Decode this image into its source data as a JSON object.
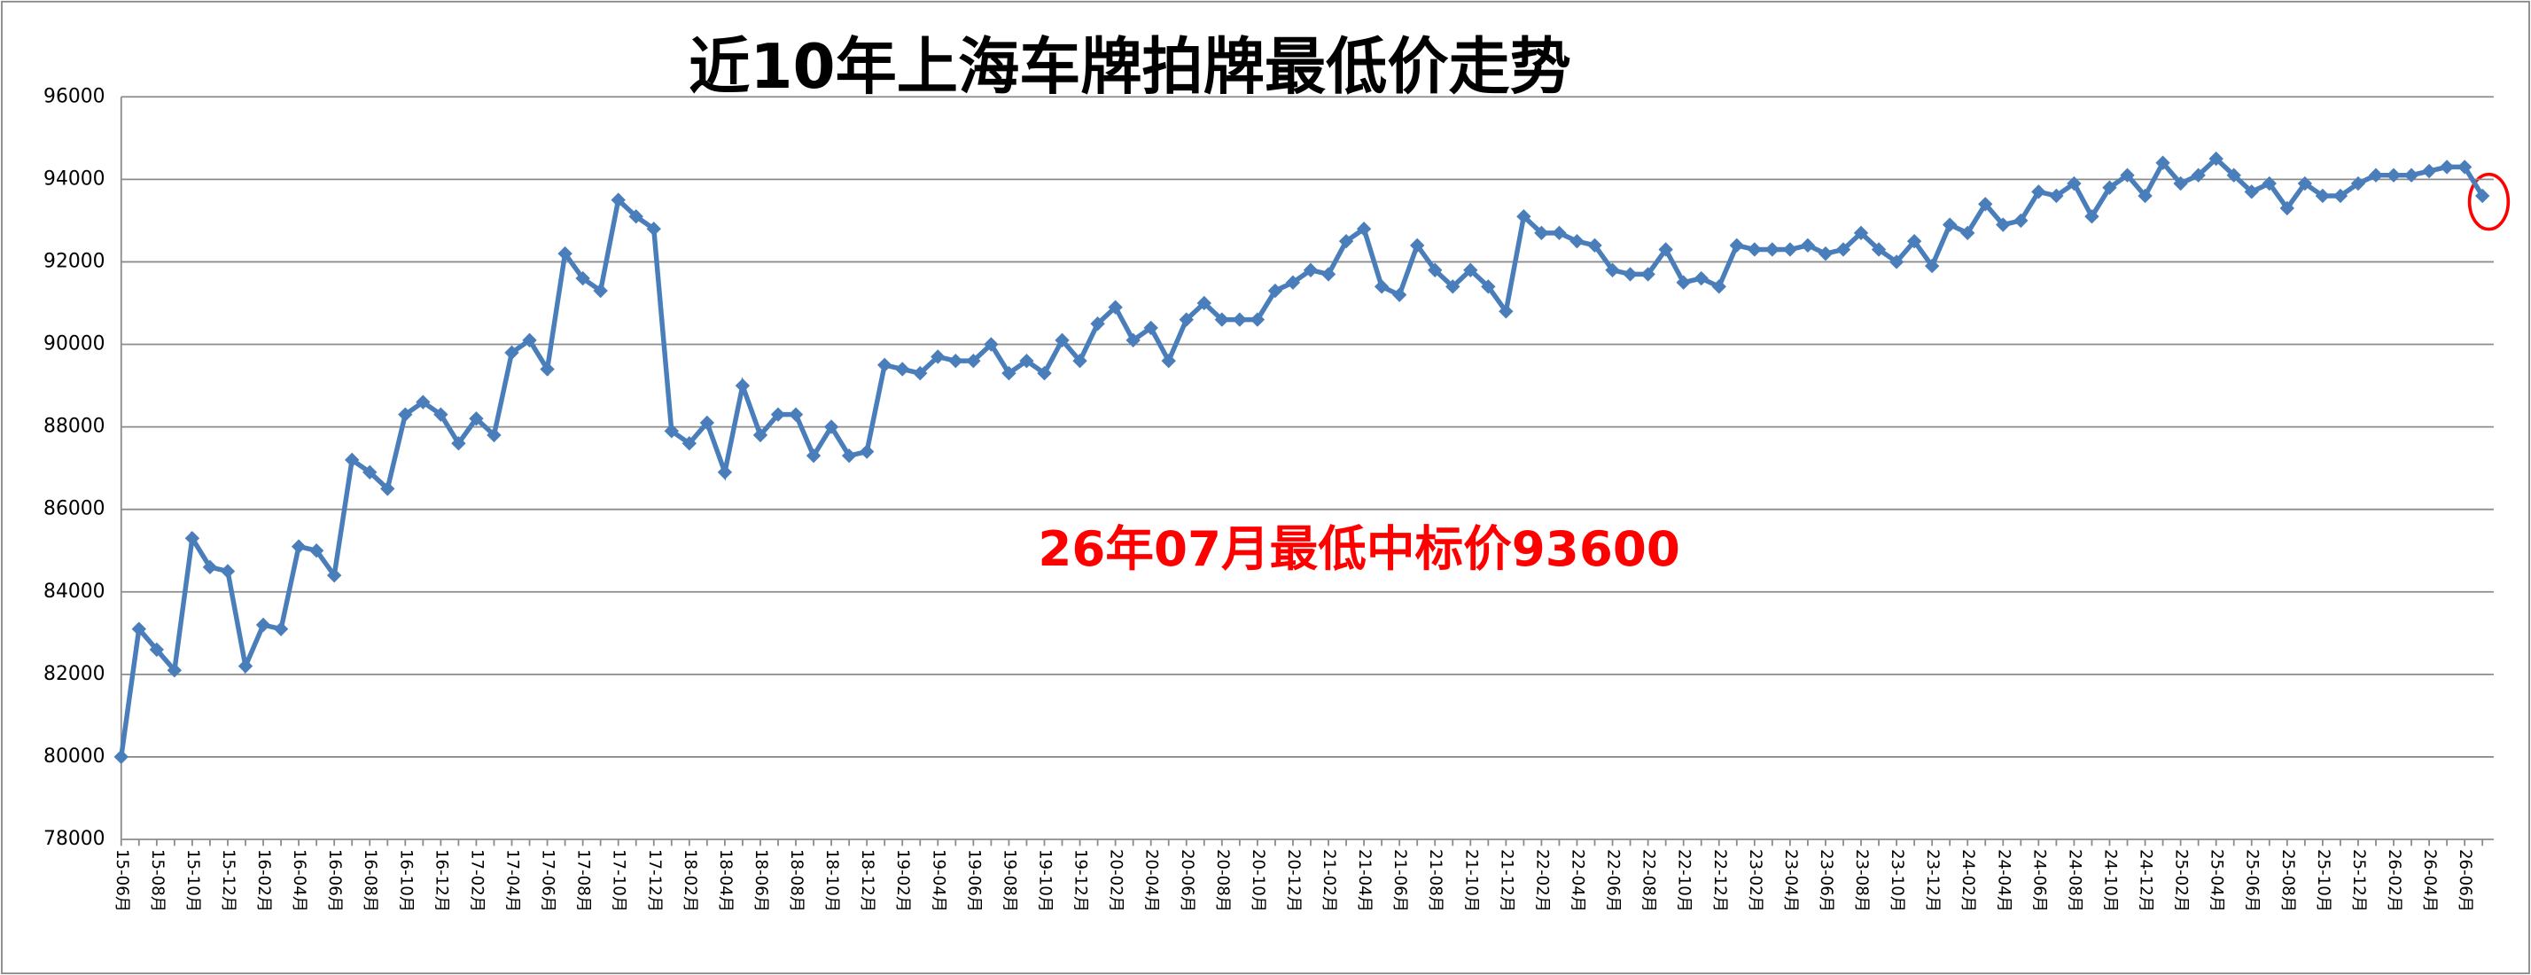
{
  "chart_data": {
    "type": "line",
    "title": "近10年上海车牌拍牌最低价走势",
    "annotation": "26年07月最低中标价93600",
    "categories": [
      "15-06月",
      null,
      "15-08月",
      null,
      "15-10月",
      null,
      "15-12月",
      null,
      "16-02月",
      null,
      "16-04月",
      null,
      "16-06月",
      null,
      "16-08月",
      null,
      "16-10月",
      null,
      "16-12月",
      null,
      "17-02月",
      null,
      "17-04月",
      null,
      "17-06月",
      null,
      "17-08月",
      null,
      "17-10月",
      null,
      "17-12月",
      null,
      "18-02月",
      null,
      "18-04月",
      null,
      "18-06月",
      null,
      "18-08月",
      null,
      "18-10月",
      null,
      "18-12月",
      null,
      "19-02月",
      null,
      "19-04月",
      null,
      "19-06月",
      null,
      "19-08月",
      null,
      "19-10月",
      null,
      "19-12月",
      null,
      "20-02月",
      null,
      "20-04月",
      null,
      "20-06月",
      null,
      "20-08月",
      null,
      "20-10月",
      null,
      "20-12月",
      null,
      "21-02月",
      null,
      "21-04月",
      null,
      "21-06月",
      null,
      "21-08月",
      null,
      "21-10月",
      null,
      "21-12月",
      null,
      "22-02月",
      null,
      "22-04月",
      null,
      "22-06月",
      null,
      "22-08月",
      null,
      "22-10月",
      null,
      "22-12月",
      null,
      "23-02月",
      null,
      "23-04月",
      null,
      "23-06月",
      null,
      "23-08月",
      null,
      "23-10月",
      null,
      "23-12月",
      null,
      "24-02月",
      null,
      "24-04月",
      null,
      "24-06月",
      null,
      "24-08月",
      null,
      "24-10月",
      null,
      "24-12月",
      null,
      "25-02月",
      null,
      "25-04月",
      null,
      "25-06月",
      null,
      "25-08月",
      null,
      "25-10月",
      null,
      "25-12月",
      null,
      "26-02月",
      null,
      "26-04月",
      null,
      "26-06月",
      null
    ],
    "values": [
      80000,
      83100,
      82600,
      82100,
      85300,
      84600,
      84500,
      82200,
      83200,
      83100,
      85100,
      85000,
      84400,
      87200,
      86900,
      86500,
      88300,
      88600,
      88300,
      87600,
      88200,
      87800,
      89800,
      90100,
      89400,
      92200,
      91600,
      91300,
      93500,
      93100,
      92800,
      87900,
      87600,
      88100,
      86900,
      89000,
      87800,
      88300,
      88300,
      87300,
      88000,
      87300,
      87400,
      89500,
      89400,
      89300,
      89700,
      89600,
      89600,
      90000,
      89300,
      89600,
      89300,
      90100,
      89600,
      90500,
      90900,
      90100,
      90400,
      89600,
      90600,
      91000,
      90600,
      90600,
      90600,
      91300,
      91500,
      91800,
      91700,
      92500,
      92800,
      91400,
      91200,
      92400,
      91800,
      91400,
      91800,
      91400,
      90800,
      93100,
      92700,
      92700,
      92500,
      92400,
      91800,
      91700,
      91700,
      92300,
      91500,
      91600,
      91400,
      92400,
      92300,
      92300,
      92300,
      92400,
      92200,
      92300,
      92700,
      92300,
      92000,
      92500,
      91900,
      92900,
      92700,
      93400,
      92900,
      93000,
      93700,
      93600,
      93900,
      93100,
      93800,
      94100,
      93600,
      94400,
      93900,
      94100,
      94500,
      94100,
      93700,
      93900,
      93300,
      93900,
      93600,
      93600,
      93900,
      94100,
      94100,
      94100,
      94200,
      94300,
      94300,
      93600
    ],
    "color": "#4a7ebb",
    "annotation_color": "#ff0000",
    "ylim": [
      78000,
      96000
    ],
    "yticks": [
      78000,
      80000,
      82000,
      84000,
      86000,
      88000,
      90000,
      92000,
      94000,
      96000
    ],
    "grid": true
  }
}
